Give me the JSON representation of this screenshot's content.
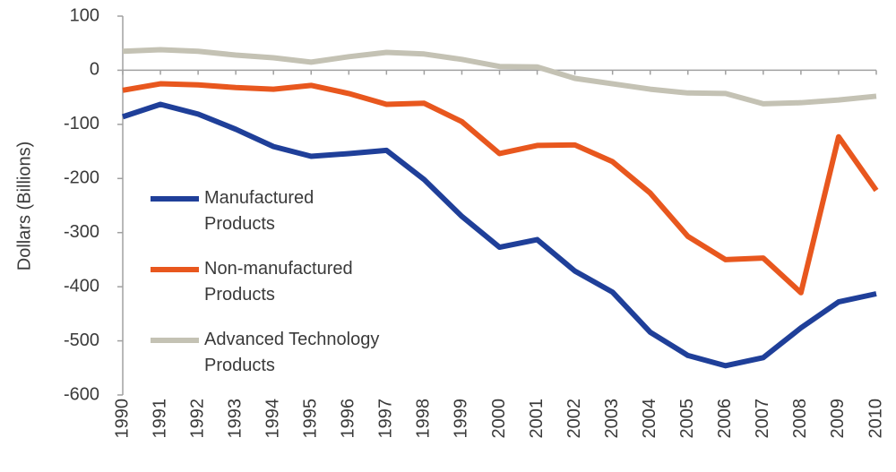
{
  "chart_data": {
    "type": "line",
    "y_label": "Dollars (Billions)",
    "categories": [
      "1990",
      "1991",
      "1992",
      "1993",
      "1994",
      "1995",
      "1996",
      "1997",
      "1998",
      "1999",
      "2000",
      "2001",
      "2002",
      "2003",
      "2004",
      "2005",
      "2006",
      "2007",
      "2008",
      "2009",
      "2010"
    ],
    "series": [
      {
        "name": "Manufactured Products",
        "color": "#1f3f99",
        "values": [
          -86,
          -63,
          -81,
          -109,
          -141,
          -159,
          -154,
          -148,
          -202,
          -270,
          -327,
          -313,
          -371,
          -410,
          -484,
          -527,
          -546,
          -531,
          -476,
          -428,
          -413
        ]
      },
      {
        "name": "Non-manufactured Products",
        "color": "#e8571e",
        "values": [
          -37,
          -25,
          -27,
          -32,
          -35,
          -28,
          -43,
          -63,
          -61,
          -95,
          -154,
          -139,
          -138,
          -169,
          -227,
          -307,
          -350,
          -347,
          -411,
          -123,
          -222
        ]
      },
      {
        "name": "Advanced Technology Products",
        "color": "#c4c2b4",
        "values": [
          35,
          38,
          35,
          28,
          23,
          15,
          25,
          33,
          30,
          20,
          7,
          6,
          -15,
          -25,
          -35,
          -42,
          -43,
          -62,
          -60,
          -55,
          -48
        ]
      }
    ],
    "ylim": [
      -600,
      100
    ],
    "yticks": [
      -600,
      -500,
      -400,
      -300,
      -200,
      -100,
      0,
      100
    ]
  }
}
